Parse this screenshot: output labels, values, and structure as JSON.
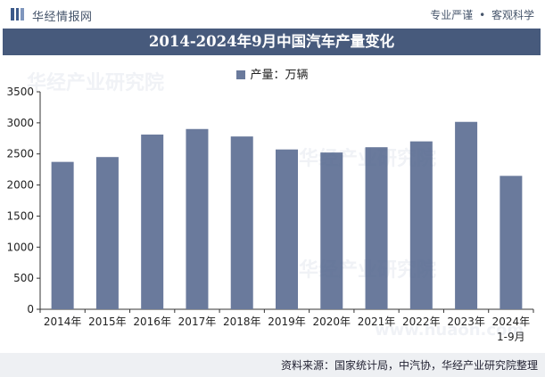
{
  "header": {
    "brand": "华经情报网",
    "tagline_left": "专业严谨",
    "tagline_sep": "•",
    "tagline_right": "客观科学"
  },
  "title": "2014-2024年9月中国汽车产量变化",
  "legend_label": "产量：万辆",
  "source": "资料来源：国家统计局，中汽协，华经产业研究院整理",
  "watermark": {
    "cn": "华经产业研究院",
    "url": "www.huaon.com"
  },
  "colors": {
    "bar": "#6a7a9c",
    "title_bg": "#475a7c",
    "axis": "#333333"
  },
  "chart_data": {
    "type": "bar",
    "categories": [
      "2014年",
      "2015年",
      "2016年",
      "2017年",
      "2018年",
      "2019年",
      "2020年",
      "2021年",
      "2022年",
      "2023年",
      "2024年\n1-9月"
    ],
    "series": [
      {
        "name": "产量：万辆",
        "values": [
          2372,
          2450,
          2812,
          2901,
          2781,
          2572,
          2523,
          2608,
          2702,
          3016,
          2147
        ]
      }
    ],
    "ylim": [
      0,
      3500
    ],
    "yticks": [
      0,
      500,
      1000,
      1500,
      2000,
      2500,
      3000,
      3500
    ],
    "grid": false,
    "legend": "top-center"
  }
}
